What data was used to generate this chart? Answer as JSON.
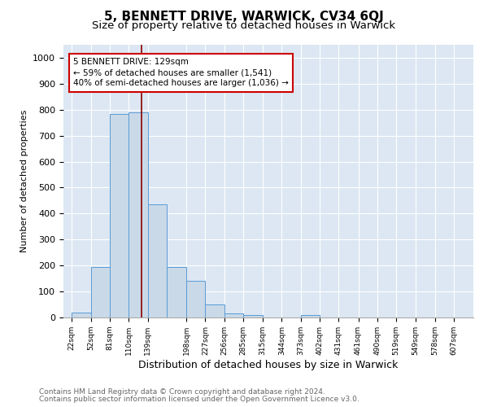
{
  "title1": "5, BENNETT DRIVE, WARWICK, CV34 6QJ",
  "title2": "Size of property relative to detached houses in Warwick",
  "xlabel": "Distribution of detached houses by size in Warwick",
  "ylabel": "Number of detached properties",
  "bin_left_edges": [
    22,
    52,
    81,
    110,
    139,
    168,
    198,
    227,
    256,
    285,
    315,
    344,
    373,
    402,
    431,
    461,
    490,
    519,
    549,
    578
  ],
  "bin_widths": [
    30,
    29,
    29,
    29,
    29,
    30,
    29,
    29,
    29,
    30,
    29,
    29,
    29,
    29,
    30,
    29,
    29,
    30,
    29,
    29
  ],
  "bar_heights": [
    18,
    195,
    785,
    790,
    435,
    195,
    140,
    50,
    15,
    10,
    0,
    0,
    10,
    0,
    0,
    0,
    0,
    0,
    0,
    0
  ],
  "tick_labels": [
    "22sqm",
    "52sqm",
    "81sqm",
    "110sqm",
    "139sqm",
    "198sqm",
    "227sqm",
    "256sqm",
    "285sqm",
    "315sqm",
    "344sqm",
    "373sqm",
    "402sqm",
    "431sqm",
    "461sqm",
    "519sqm",
    "549sqm",
    "578sqm",
    "607sqm"
  ],
  "bar_color": "#c9d9e8",
  "bar_edge_color": "#5b9bd5",
  "property_size": 129,
  "vline_color": "#8b0000",
  "annotation_line1": "5 BENNETT DRIVE: 129sqm",
  "annotation_line2": "← 59% of detached houses are smaller (1,541)",
  "annotation_line3": "40% of semi-detached houses are larger (1,036) →",
  "annotation_box_color": "#ffffff",
  "annotation_box_edge_color": "#cc0000",
  "ylim_max": 1050,
  "yticks": [
    0,
    100,
    200,
    300,
    400,
    500,
    600,
    700,
    800,
    900,
    1000
  ],
  "footer1": "Contains HM Land Registry data © Crown copyright and database right 2024.",
  "footer2": "Contains public sector information licensed under the Open Government Licence v3.0.",
  "plot_bg_color": "#dce7f3",
  "fig_bg_color": "#ffffff",
  "grid_color": "#ffffff",
  "title1_fontsize": 11,
  "title2_fontsize": 9.5,
  "ylabel_fontsize": 8,
  "xlabel_fontsize": 9
}
